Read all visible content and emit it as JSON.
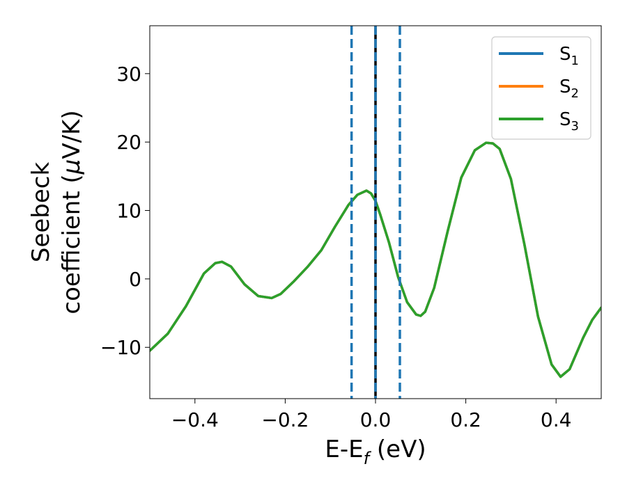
{
  "chart_data": {
    "type": "line",
    "xlabel": {
      "main": "E-E",
      "sub": "f",
      "unit": " (eV)"
    },
    "ylabel": {
      "line1": "Seebeck",
      "line2": "coefficient  (",
      "mu": "μ",
      "line2_unit": "V/K)"
    },
    "xlim": [
      -0.5,
      0.5
    ],
    "ylim": [
      -17.5,
      37
    ],
    "xticks": [
      -0.4,
      -0.2,
      0.0,
      0.2,
      0.4
    ],
    "xtick_labels": [
      "−0.4",
      "−0.2",
      "0.0",
      "0.2",
      "0.4"
    ],
    "yticks": [
      -10,
      0,
      10,
      20,
      30
    ],
    "ytick_labels": [
      "−10",
      "0",
      "10",
      "20",
      "30"
    ],
    "grid": false,
    "legend_position": "top-right",
    "series": [
      {
        "name": "S",
        "sub": "1",
        "color": "#1f77b4"
      },
      {
        "name": "S",
        "sub": "2",
        "color": "#ff7f0e"
      },
      {
        "name": "S",
        "sub": "3",
        "color": "#2ca02c"
      }
    ],
    "curve": {
      "x": [
        -0.5,
        -0.46,
        -0.42,
        -0.38,
        -0.355,
        -0.34,
        -0.32,
        -0.29,
        -0.26,
        -0.23,
        -0.21,
        -0.18,
        -0.15,
        -0.12,
        -0.09,
        -0.06,
        -0.04,
        -0.02,
        -0.01,
        0.0,
        0.01,
        0.03,
        0.05,
        0.07,
        0.09,
        0.1,
        0.11,
        0.13,
        0.16,
        0.19,
        0.22,
        0.245,
        0.26,
        0.275,
        0.3,
        0.33,
        0.36,
        0.39,
        0.41,
        0.43,
        0.46,
        0.48,
        0.5
      ],
      "y": [
        -10.5,
        -8,
        -4,
        0.8,
        2.3,
        2.5,
        1.8,
        -0.8,
        -2.5,
        -2.8,
        -2.2,
        -0.3,
        1.8,
        4.2,
        7.6,
        10.8,
        12.3,
        12.9,
        12.5,
        11.4,
        9.5,
        5.3,
        0.3,
        -3.4,
        -5.2,
        -5.4,
        -4.8,
        -1.3,
        7,
        14.8,
        18.8,
        19.9,
        19.8,
        19,
        14.6,
        5,
        -5.5,
        -12.5,
        -14.3,
        -13.2,
        -8.6,
        -6,
        -4.2
      ]
    },
    "vlines": [
      {
        "x": -0.053,
        "style": "dashed",
        "color": "#1f77b4"
      },
      {
        "x": 0.0,
        "style": "solid",
        "color": "#000000"
      },
      {
        "x": 0.0,
        "style": "dashed",
        "color": "#1f77b4"
      },
      {
        "x": 0.054,
        "style": "dashed",
        "color": "#1f77b4"
      }
    ]
  }
}
